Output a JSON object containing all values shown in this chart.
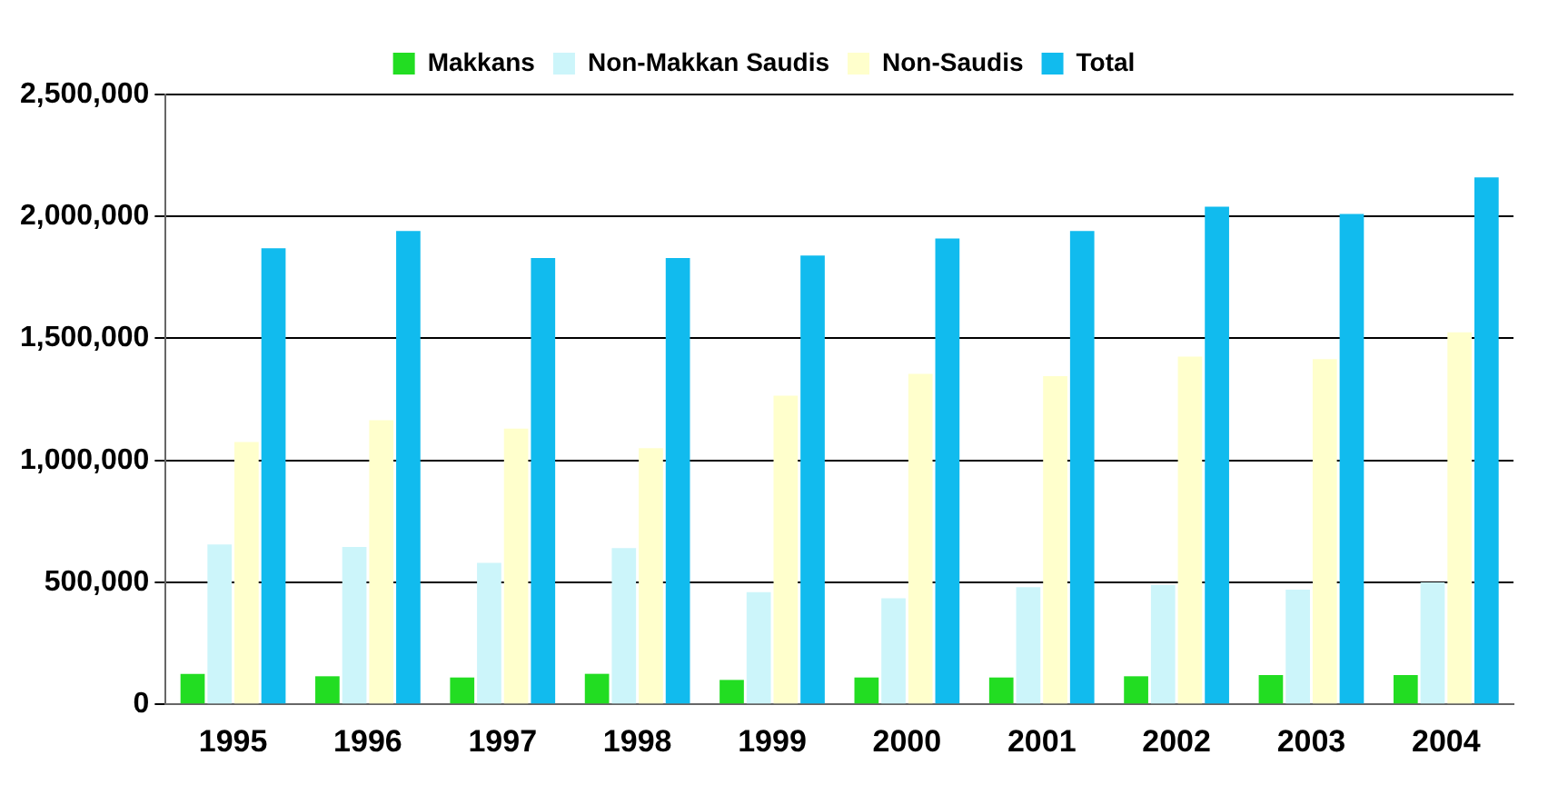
{
  "chart_data": {
    "type": "bar",
    "categories": [
      "1995",
      "1996",
      "1997",
      "1998",
      "1999",
      "2000",
      "2001",
      "2002",
      "2003",
      "2004"
    ],
    "series": [
      {
        "name": "Makkans",
        "color": "#22dd22",
        "values": [
          125000,
          115000,
          110000,
          125000,
          100000,
          110000,
          110000,
          115000,
          120000,
          120000
        ]
      },
      {
        "name": "Non-Makkan Saudis",
        "color": "#ccf5fa",
        "values": [
          655000,
          645000,
          580000,
          640000,
          460000,
          435000,
          480000,
          490000,
          470000,
          500000
        ]
      },
      {
        "name": "Non-Saudis",
        "color": "#ffffcc",
        "values": [
          1075000,
          1165000,
          1130000,
          1050000,
          1265000,
          1355000,
          1345000,
          1425000,
          1415000,
          1525000
        ]
      },
      {
        "name": "Total",
        "color": "#11bbee",
        "values": [
          1870000,
          1940000,
          1830000,
          1830000,
          1840000,
          1910000,
          1940000,
          2040000,
          2010000,
          2160000
        ]
      }
    ],
    "ylim": [
      0,
      2500000
    ],
    "yticks": [
      {
        "value": 0,
        "label": "0"
      },
      {
        "value": 500000,
        "label": "500,000"
      },
      {
        "value": 1000000,
        "label": "1,000,000"
      },
      {
        "value": 1500000,
        "label": "1,500,000"
      },
      {
        "value": 2000000,
        "label": "2,000,000"
      },
      {
        "value": 2500000,
        "label": "2,500,000"
      }
    ],
    "grid": "y",
    "legend": "top"
  }
}
